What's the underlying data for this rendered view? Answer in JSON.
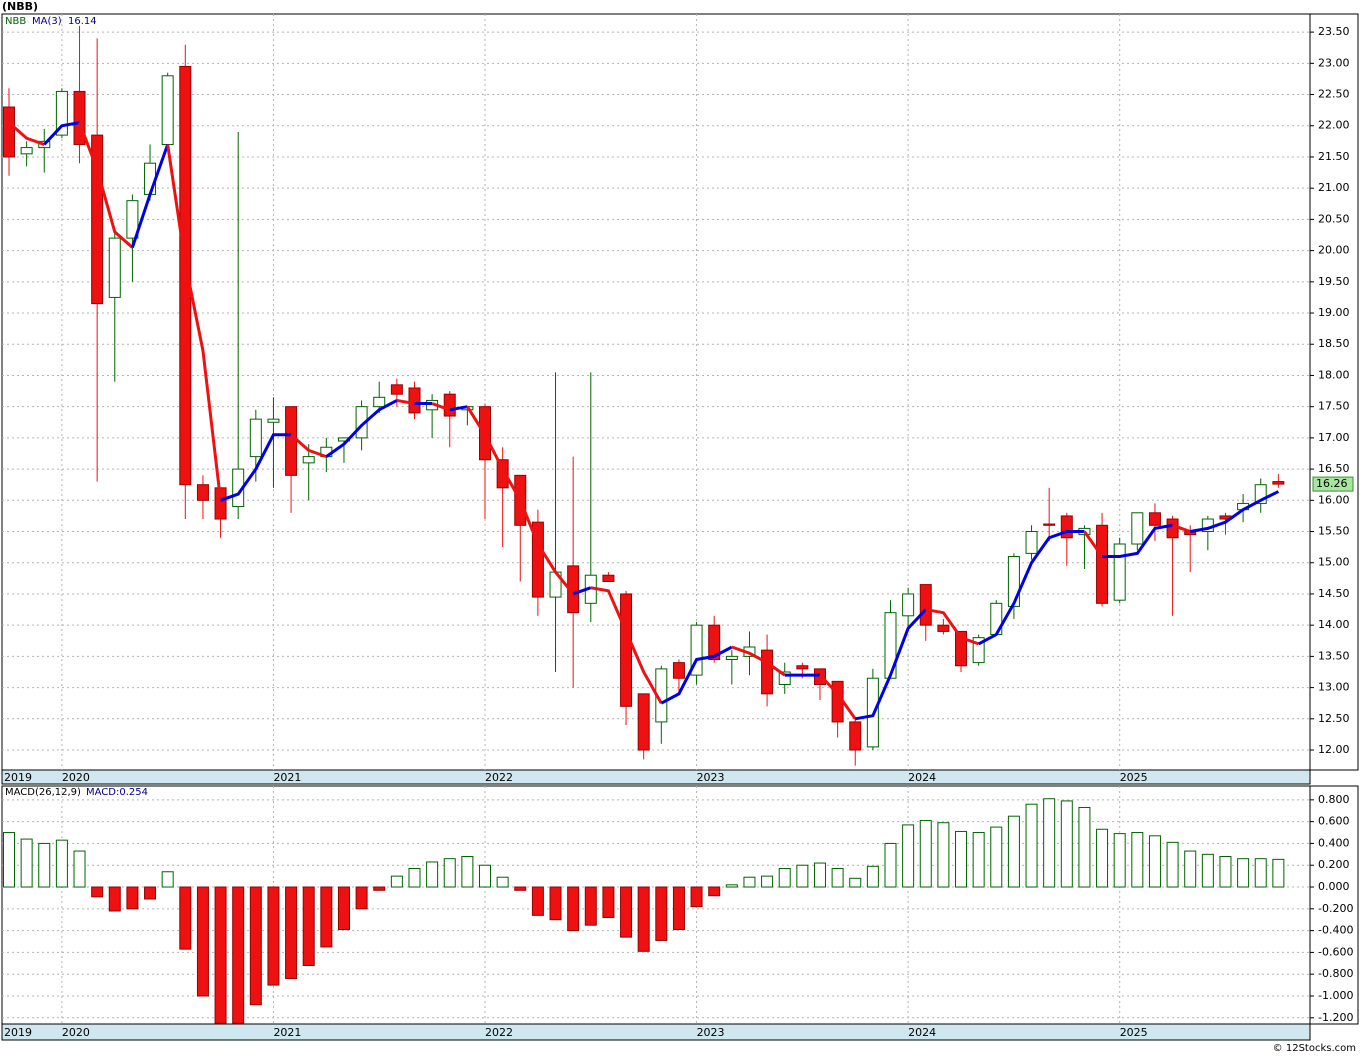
{
  "chart_data": [
    {
      "type": "candlestick",
      "title": "(NBB)",
      "ticker": "NBB",
      "categories": [
        "2019",
        null,
        null,
        "2020",
        null,
        null,
        null,
        null,
        null,
        null,
        null,
        null,
        null,
        null,
        null,
        "2021",
        null,
        null,
        null,
        null,
        null,
        null,
        null,
        null,
        null,
        null,
        null,
        "2022",
        null,
        null,
        null,
        null,
        null,
        null,
        null,
        null,
        null,
        null,
        null,
        "2023",
        null,
        null,
        null,
        null,
        null,
        null,
        null,
        null,
        null,
        null,
        null,
        "2024",
        null,
        null,
        null,
        null,
        null,
        null,
        null,
        null,
        null,
        null,
        null,
        "2025",
        null,
        null,
        null,
        null,
        null,
        null,
        null,
        null,
        null
      ],
      "open": [
        22.3,
        21.55,
        21.65,
        21.85,
        22.55,
        21.85,
        19.25,
        20.2,
        20.9,
        21.7,
        22.95,
        16.25,
        16.2,
        15.9,
        16.7,
        17.25,
        17.5,
        16.6,
        16.7,
        16.95,
        17.0,
        17.5,
        17.85,
        17.8,
        17.45,
        17.7,
        17.45,
        17.5,
        16.65,
        16.4,
        15.65,
        14.45,
        14.95,
        14.35,
        14.8,
        14.5,
        12.9,
        12.45,
        13.4,
        13.2,
        14.0,
        13.45,
        13.5,
        13.6,
        13.05,
        13.35,
        13.3,
        13.1,
        12.45,
        12.05,
        13.15,
        14.15,
        14.65,
        14.0,
        13.9,
        13.4,
        13.85,
        14.3,
        15.15,
        15.62,
        15.75,
        15.45,
        15.6,
        14.4,
        15.3,
        15.8,
        15.7,
        15.5,
        15.5,
        15.75,
        15.85,
        15.95,
        16.3
      ],
      "high": [
        22.6,
        21.75,
        21.95,
        22.6,
        23.6,
        23.4,
        20.3,
        20.9,
        21.7,
        22.85,
        23.3,
        16.4,
        16.2,
        21.9,
        17.45,
        17.65,
        17.5,
        16.9,
        17.0,
        17.0,
        17.6,
        17.9,
        17.95,
        17.9,
        17.7,
        17.75,
        17.5,
        17.55,
        16.85,
        16.4,
        15.85,
        18.05,
        16.7,
        18.05,
        14.85,
        14.55,
        12.9,
        13.35,
        13.45,
        14.05,
        14.15,
        13.6,
        13.9,
        13.85,
        13.4,
        13.4,
        13.3,
        13.1,
        12.5,
        13.3,
        14.4,
        14.6,
        14.65,
        14.1,
        13.9,
        13.85,
        14.4,
        15.15,
        15.6,
        16.2,
        15.8,
        15.6,
        15.8,
        15.4,
        15.8,
        15.95,
        15.75,
        15.6,
        15.75,
        15.8,
        16.1,
        16.35,
        16.42
      ],
      "low": [
        21.2,
        21.35,
        21.25,
        21.8,
        21.4,
        16.3,
        17.9,
        19.5,
        20.8,
        21.6,
        15.7,
        15.7,
        15.4,
        15.7,
        16.3,
        16.2,
        15.8,
        16.0,
        16.45,
        16.6,
        16.8,
        17.4,
        17.5,
        17.3,
        17.0,
        16.85,
        17.2,
        15.7,
        15.25,
        14.7,
        14.15,
        13.25,
        13.0,
        14.05,
        14.7,
        12.4,
        11.85,
        12.1,
        12.95,
        13.05,
        13.4,
        13.05,
        13.2,
        12.7,
        12.9,
        13.15,
        12.8,
        12.2,
        11.75,
        12.0,
        13.15,
        13.9,
        13.75,
        13.85,
        13.25,
        13.35,
        13.85,
        14.1,
        15.05,
        15.35,
        14.95,
        14.9,
        14.3,
        14.35,
        15.2,
        15.35,
        14.15,
        14.85,
        15.2,
        15.45,
        15.65,
        15.8,
        16.2
      ],
      "close": [
        21.5,
        21.65,
        21.75,
        22.55,
        21.7,
        19.15,
        20.2,
        20.8,
        21.4,
        22.8,
        16.25,
        16.0,
        15.7,
        16.5,
        17.3,
        17.3,
        16.4,
        16.7,
        16.85,
        17.0,
        17.5,
        17.65,
        17.7,
        17.4,
        17.6,
        17.35,
        17.5,
        16.65,
        16.2,
        15.6,
        14.45,
        14.85,
        14.2,
        14.8,
        14.7,
        12.7,
        12.0,
        13.3,
        13.15,
        14.0,
        13.45,
        13.5,
        13.65,
        12.9,
        13.25,
        13.3,
        13.05,
        12.45,
        12.0,
        13.15,
        14.2,
        14.5,
        14.0,
        13.9,
        13.35,
        13.8,
        14.35,
        15.1,
        15.5,
        15.6,
        15.4,
        15.55,
        14.35,
        15.3,
        15.8,
        15.6,
        15.4,
        15.45,
        15.7,
        15.7,
        15.95,
        16.25,
        16.26
      ],
      "ma": {
        "name": "MA(3)",
        "up_color": "#0000e6",
        "down_color": "#ee1111",
        "values": [
          22.05,
          21.8,
          21.7,
          22.0,
          22.05,
          21.3,
          20.3,
          20.05,
          20.9,
          21.7,
          19.8,
          18.4,
          16.0,
          16.1,
          16.5,
          17.05,
          17.05,
          16.8,
          16.7,
          16.9,
          17.2,
          17.45,
          17.6,
          17.55,
          17.55,
          17.45,
          17.5,
          17.05,
          16.5,
          16.0,
          15.3,
          14.85,
          14.5,
          14.6,
          14.55,
          13.9,
          13.25,
          12.75,
          12.9,
          13.45,
          13.5,
          13.65,
          13.55,
          13.4,
          13.2,
          13.2,
          13.2,
          12.9,
          12.5,
          12.55,
          13.2,
          13.95,
          14.25,
          14.2,
          13.8,
          13.7,
          13.85,
          14.35,
          15.0,
          15.4,
          15.5,
          15.5,
          15.1,
          15.1,
          15.15,
          15.55,
          15.6,
          15.5,
          15.55,
          15.65,
          15.85,
          16.0,
          16.14
        ]
      },
      "up_color": "#006400",
      "down_color": "#ee1111",
      "ylim": [
        11.68,
        23.79
      ],
      "yticks": [
        {
          "value": 12,
          "label": "12.00"
        },
        {
          "value": 12.5,
          "label": "12.50"
        },
        {
          "value": 13,
          "label": "13.00"
        },
        {
          "value": 13.5,
          "label": "13.50"
        },
        {
          "value": 14,
          "label": "14.00"
        },
        {
          "value": 14.5,
          "label": "14.50"
        },
        {
          "value": 15,
          "label": "15.00"
        },
        {
          "value": 15.5,
          "label": "15.50"
        },
        {
          "value": 16,
          "label": "16.00"
        },
        {
          "value": 16.5,
          "label": "16.50"
        },
        {
          "value": 17,
          "label": "17.00"
        },
        {
          "value": 17.5,
          "label": "17.50"
        },
        {
          "value": 18,
          "label": "18.00"
        },
        {
          "value": 18.5,
          "label": "18.50"
        },
        {
          "value": 19,
          "label": "19.00"
        },
        {
          "value": 19.5,
          "label": "19.50"
        },
        {
          "value": 20,
          "label": "20.00"
        },
        {
          "value": 20.5,
          "label": "20.50"
        },
        {
          "value": 21,
          "label": "21.00"
        },
        {
          "value": 21.5,
          "label": "21.50"
        },
        {
          "value": 22,
          "label": "22.00"
        },
        {
          "value": 22.5,
          "label": "22.50"
        },
        {
          "value": 23,
          "label": "23.00"
        },
        {
          "value": 23.5,
          "label": "23.50"
        }
      ],
      "grid": true
    },
    {
      "type": "bar",
      "name": "MACD(26,12,9)",
      "value_text": "MACD:0.254",
      "categories": [
        "2019",
        null,
        null,
        "2020",
        null,
        null,
        null,
        null,
        null,
        null,
        null,
        null,
        null,
        null,
        null,
        "2021",
        null,
        null,
        null,
        null,
        null,
        null,
        null,
        null,
        null,
        null,
        null,
        "2022",
        null,
        null,
        null,
        null,
        null,
        null,
        null,
        null,
        null,
        null,
        null,
        "2023",
        null,
        null,
        null,
        null,
        null,
        null,
        null,
        null,
        null,
        null,
        null,
        "2024",
        null,
        null,
        null,
        null,
        null,
        null,
        null,
        null,
        null,
        null,
        null,
        "2025",
        null,
        null,
        null,
        null,
        null,
        null,
        null,
        null,
        null
      ],
      "values": [
        0.5,
        0.44,
        0.4,
        0.43,
        0.33,
        -0.09,
        -0.22,
        -0.2,
        -0.11,
        0.14,
        -0.57,
        -1.0,
        -1.25,
        -1.25,
        -1.08,
        -0.9,
        -0.84,
        -0.72,
        -0.55,
        -0.39,
        -0.2,
        -0.03,
        0.1,
        0.17,
        0.23,
        0.26,
        0.28,
        0.2,
        0.09,
        -0.03,
        -0.26,
        -0.3,
        -0.4,
        -0.35,
        -0.28,
        -0.46,
        -0.59,
        -0.49,
        -0.39,
        -0.18,
        -0.08,
        0.02,
        0.09,
        0.1,
        0.17,
        0.2,
        0.22,
        0.17,
        0.08,
        0.19,
        0.4,
        0.57,
        0.61,
        0.59,
        0.51,
        0.5,
        0.55,
        0.65,
        0.76,
        0.81,
        0.79,
        0.73,
        0.53,
        0.49,
        0.5,
        0.47,
        0.41,
        0.33,
        0.3,
        0.28,
        0.26,
        0.26,
        0.254
      ],
      "up_color": "#006400",
      "down_color": "#ee1111",
      "ylim": [
        -1.257,
        0.927
      ],
      "yticks": [
        {
          "value": -1.2,
          "label": "-1.200"
        },
        {
          "value": -1.0,
          "label": "-1.000"
        },
        {
          "value": -0.8,
          "label": "-0.800"
        },
        {
          "value": -0.6,
          "label": "-0.600"
        },
        {
          "value": -0.4,
          "label": "-0.400"
        },
        {
          "value": -0.2,
          "label": "-0.200"
        },
        {
          "value": 0,
          "label": "0.000"
        },
        {
          "value": 0.2,
          "label": "0.200"
        },
        {
          "value": 0.4,
          "label": "0.400"
        },
        {
          "value": 0.6,
          "label": "0.600"
        },
        {
          "value": 0.8,
          "label": "0.800"
        }
      ],
      "grid": true
    }
  ],
  "footer": "© 12Stocks.com"
}
